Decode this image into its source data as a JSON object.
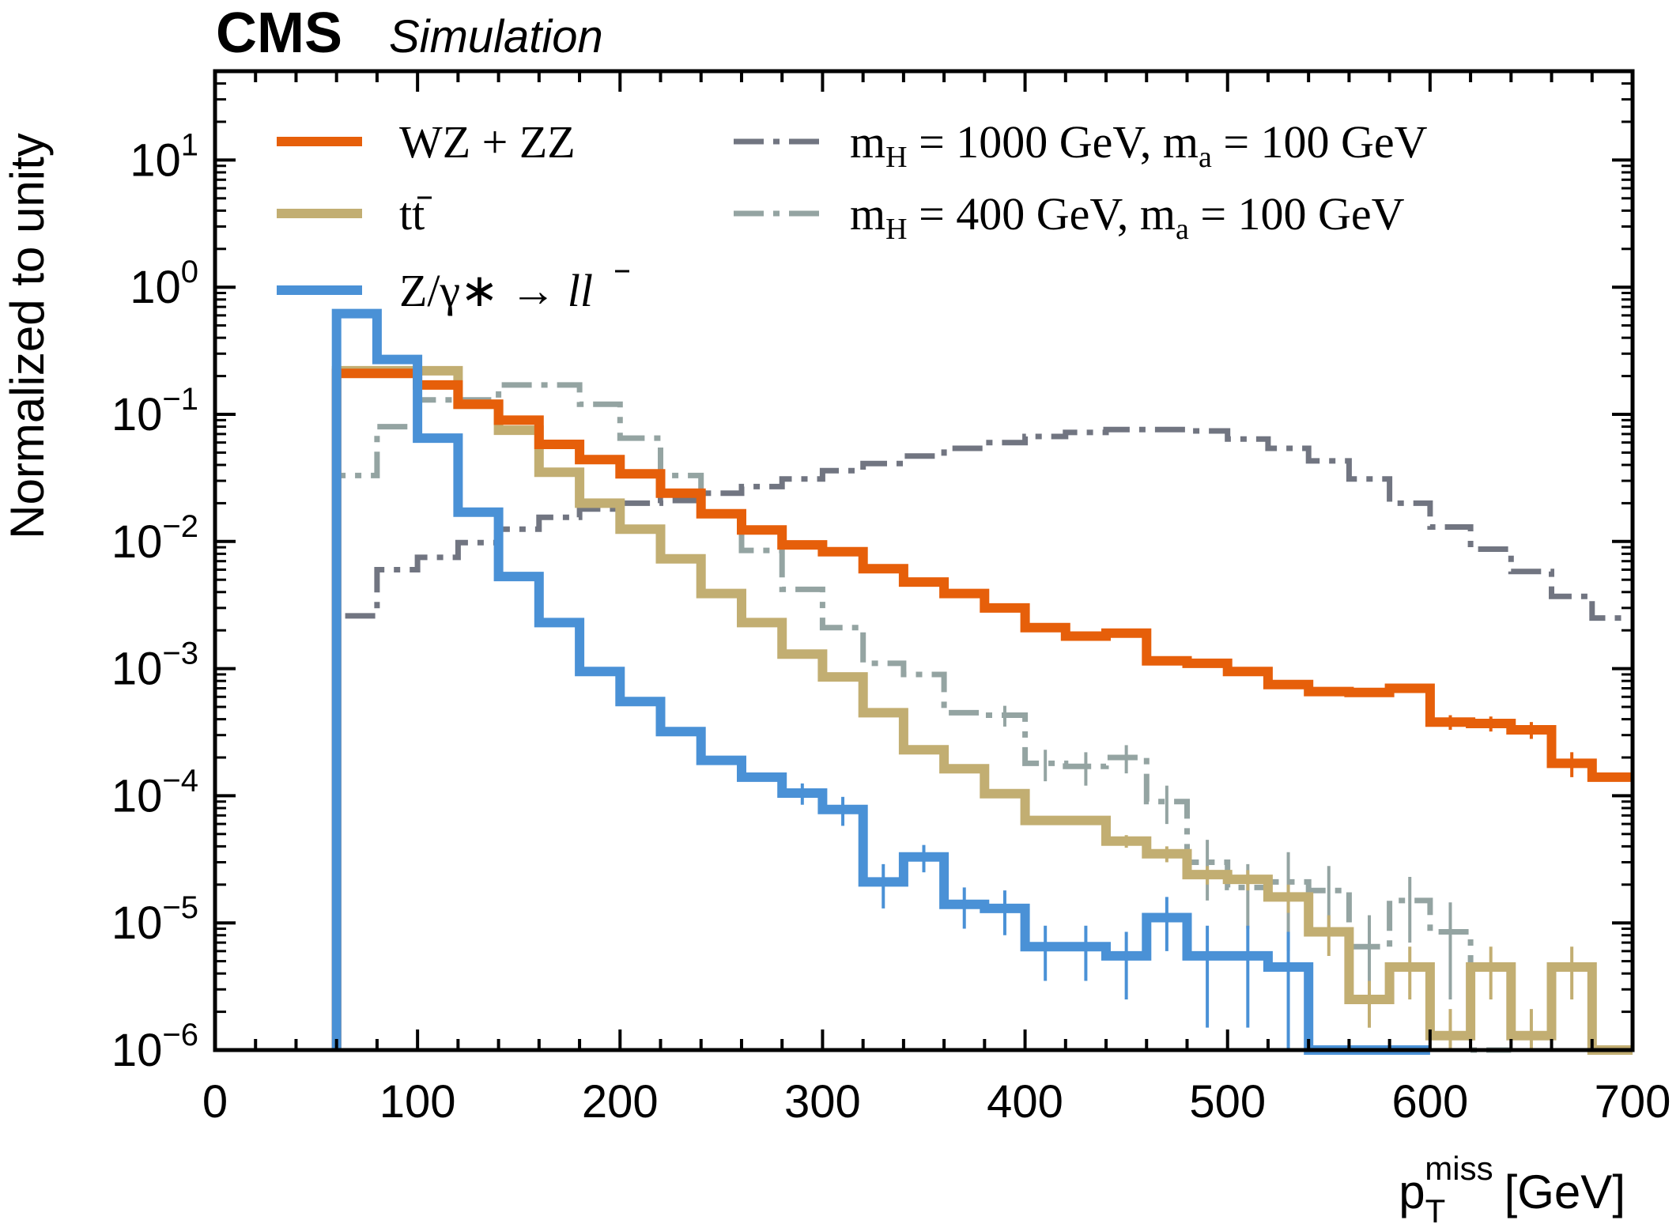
{
  "header": {
    "experiment": "CMS",
    "label": "Simulation"
  },
  "chart_data": {
    "type": "step-histogram",
    "title": "",
    "xlabel": {
      "main": "p",
      "sub": "T",
      "sup": "miss",
      "unit": "[GeV]"
    },
    "ylabel": "Normalized to unity",
    "xlim": [
      0,
      700
    ],
    "ylim": [
      1e-06,
      50
    ],
    "yscale": "log",
    "xticks": [
      0,
      100,
      200,
      300,
      400,
      500,
      600,
      700
    ],
    "yticks": [
      {
        "value": 1e-06,
        "base": "10",
        "exp": "−6"
      },
      {
        "value": 1e-05,
        "base": "10",
        "exp": "−5"
      },
      {
        "value": 0.0001,
        "base": "10",
        "exp": "−4"
      },
      {
        "value": 0.001,
        "base": "10",
        "exp": "−3"
      },
      {
        "value": 0.01,
        "base": "10",
        "exp": "−2"
      },
      {
        "value": 0.1,
        "base": "10",
        "exp": "−1"
      },
      {
        "value": 1,
        "base": "10",
        "exp": "0"
      },
      {
        "value": 10,
        "base": "10",
        "exp": "1"
      }
    ],
    "legend_placement": "top",
    "bin_edges": [
      60,
      80,
      100,
      120,
      140,
      160,
      180,
      200,
      220,
      240,
      260,
      280,
      300,
      320,
      340,
      360,
      380,
      400,
      420,
      440,
      460,
      480,
      500,
      520,
      540,
      560,
      580,
      600,
      620,
      640,
      660,
      680,
      700
    ],
    "series": [
      {
        "name": "WZ + ZZ",
        "legend": {
          "a": "WZ + ZZ"
        },
        "color": "#e65f0a",
        "style": "solid",
        "values": [
          0.21,
          0.21,
          0.17,
          0.12,
          0.09,
          0.058,
          0.044,
          0.034,
          0.024,
          0.0165,
          0.0123,
          0.0094,
          0.0083,
          0.0061,
          0.0048,
          0.0039,
          0.003,
          0.0021,
          0.0018,
          0.0019,
          0.00115,
          0.0011,
          0.00095,
          0.00075,
          0.00066,
          0.00065,
          0.0007,
          0.00038,
          0.00037,
          0.00033,
          0.00018,
          0.00014
        ],
        "errors": [
          0,
          0,
          0,
          0,
          0,
          0,
          0,
          0,
          0,
          0,
          0,
          0,
          0,
          0,
          0,
          0,
          0,
          0,
          0,
          0,
          0,
          0,
          0,
          0,
          0,
          0,
          0,
          5e-05,
          5e-05,
          5e-05,
          4e-05,
          0
        ]
      },
      {
        "name": "tt̄",
        "legend": {
          "a": "t",
          "b": "t"
        },
        "color": "#c2ae72",
        "style": "solid",
        "values": [
          0.22,
          0.22,
          0.22,
          0.12,
          0.075,
          0.035,
          0.02,
          0.0125,
          0.0073,
          0.0039,
          0.0023,
          0.0013,
          0.00086,
          0.00045,
          0.00023,
          0.000163,
          0.000104,
          6.4e-05,
          6.4e-05,
          4.4e-05,
          3.5e-05,
          2.4e-05,
          2.2e-05,
          1.6e-05,
          8.5e-06,
          2.5e-06,
          4.5e-06,
          1.3e-06,
          4.5e-06,
          1.3e-06,
          4.5e-06,
          1e-06
        ],
        "errors": [
          0,
          0,
          0,
          0,
          0,
          0,
          0,
          0,
          0,
          0,
          0,
          0,
          0,
          0,
          0,
          0,
          0,
          0,
          5e-06,
          5e-06,
          5e-06,
          4e-06,
          4e-06,
          4e-06,
          3e-06,
          1e-06,
          2e-06,
          8e-07,
          2e-06,
          8e-07,
          2e-06,
          0
        ]
      },
      {
        "name": "Z/γ* → ll̄",
        "legend": {
          "a": "Z/γ∗ → ",
          "b": "l",
          "c": "l"
        },
        "color": "#4a91d6",
        "style": "solid",
        "values": [
          0.62,
          0.27,
          0.065,
          0.017,
          0.0053,
          0.0023,
          0.00095,
          0.00055,
          0.00032,
          0.00019,
          0.00014,
          0.000105,
          7.8e-05,
          2.1e-05,
          3.3e-05,
          1.4e-05,
          1.3e-05,
          6.5e-06,
          6.5e-06,
          5.5e-06,
          1.1e-05,
          5.5e-06,
          5.5e-06,
          4.5e-06,
          1e-06,
          1e-06,
          1e-06
        ],
        "errors": [
          0,
          0,
          0,
          0,
          0,
          0,
          0,
          0,
          0,
          0,
          0,
          2e-05,
          2e-05,
          8e-06,
          8e-06,
          5e-06,
          5e-06,
          3e-06,
          3e-06,
          3e-06,
          5e-06,
          4e-06,
          4e-06,
          4e-06,
          0,
          0,
          0
        ]
      },
      {
        "name": "mH = 1000 GeV, ma = 100 GeV",
        "legend": {
          "m1": "m",
          "s1": "H",
          "v1": " = 1000 GeV, ",
          "m2": "m",
          "s2": "a",
          "v2": " = 100 GeV"
        },
        "color": "#717581",
        "style": "dashed",
        "values": [
          0.0026,
          0.006,
          0.0075,
          0.0098,
          0.0125,
          0.0155,
          0.018,
          0.02,
          0.021,
          0.024,
          0.027,
          0.031,
          0.036,
          0.041,
          0.047,
          0.054,
          0.06,
          0.067,
          0.072,
          0.076,
          0.076,
          0.074,
          0.064,
          0.054,
          0.043,
          0.031,
          0.02,
          0.013,
          0.0087,
          0.0058,
          0.0037,
          0.0025
        ],
        "errors": [
          0,
          0,
          0,
          0,
          0,
          0,
          0,
          0,
          0,
          0,
          0,
          0,
          0,
          0,
          0,
          0,
          0,
          0,
          0,
          0,
          0,
          0,
          0,
          0,
          0,
          0,
          0,
          0,
          0,
          0,
          0,
          0
        ]
      },
      {
        "name": "mH = 400 GeV, ma = 100 GeV",
        "legend": {
          "m1": "m",
          "s1": "H",
          "v1": " = 400 GeV, ",
          "m2": "m",
          "s2": "a",
          "v2": " = 100 GeV"
        },
        "color": "#94a4a2",
        "style": "dashed",
        "values": [
          0.033,
          0.08,
          0.13,
          0.13,
          0.17,
          0.17,
          0.12,
          0.065,
          0.033,
          0.017,
          0.0085,
          0.0042,
          0.0021,
          0.0011,
          0.0009,
          0.00045,
          0.00043,
          0.00018,
          0.00017,
          0.0002,
          9e-05,
          3e-05,
          1.9e-05,
          2.1e-05,
          1.8e-05,
          6.5e-06,
          1.5e-05,
          8.5e-06,
          1e-06
        ],
        "errors": [
          0,
          0,
          0,
          0,
          0,
          0,
          0,
          0,
          0,
          0,
          0,
          0,
          0,
          0,
          0,
          0,
          8e-05,
          5e-05,
          5e-05,
          5e-05,
          3e-05,
          1.5e-05,
          1e-05,
          1.5e-05,
          1e-05,
          5e-06,
          8e-06,
          6e-06,
          0
        ]
      }
    ]
  }
}
